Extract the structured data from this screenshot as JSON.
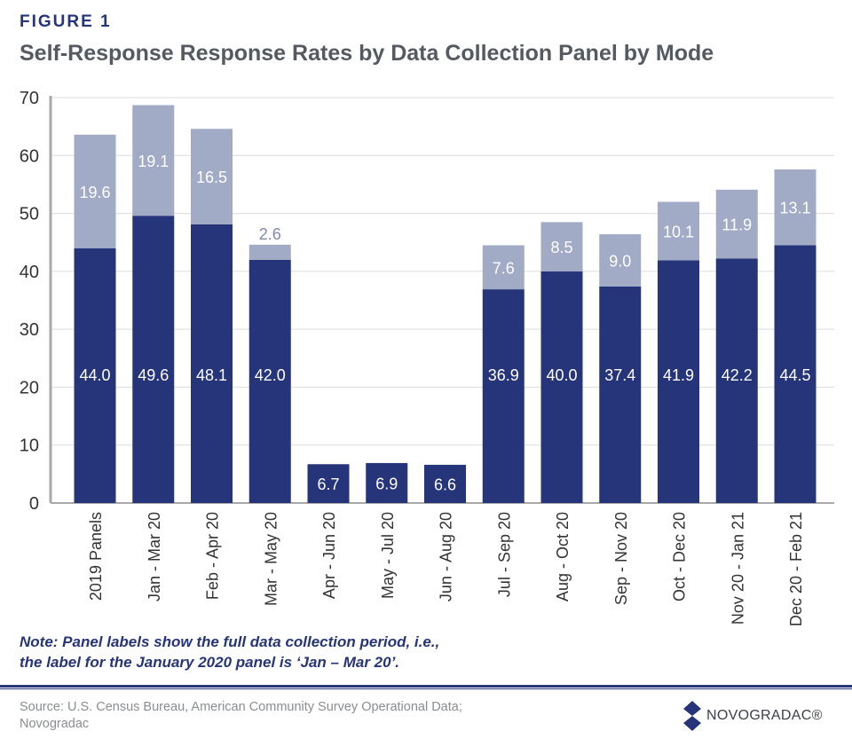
{
  "figure_label": "FIGURE 1",
  "note": [
    "Note: Panel labels show the full data collection period, i.e.,",
    "the label for the January 2020 panel is ‘Jan – Mar 20’."
  ],
  "source": "Source: U.S. Census Bureau, American Community Survey Operational Data; Novogradac",
  "logo_text": "NOVOGRADAC®",
  "colors": {
    "dark": "#26357a",
    "light": "#a2abc6",
    "grid": "#dcdcdc"
  },
  "chart_data": {
    "type": "bar",
    "stacked": true,
    "title": "Self-Response Response Rates by Data Collection Panel by Mode",
    "xlabel": "",
    "ylabel": "",
    "ylim": [
      0,
      70
    ],
    "yticks": [
      0,
      10,
      20,
      30,
      40,
      50,
      60,
      70
    ],
    "grid": true,
    "categories": [
      "2019 Panels",
      "Jan - Mar 20",
      "Feb - Apr 20",
      "Mar - May 20",
      "Apr - Jun 20",
      "May - Jul 20",
      "Jun - Aug 20",
      "Jul - Sep 20",
      "Aug - Oct 20",
      "Sep - Nov 20",
      "Oct - Dec 20",
      "Nov 20 - Jan 21",
      "Dec 20 - Feb 21"
    ],
    "series": [
      {
        "name": "Lower segment",
        "values": [
          44.0,
          49.6,
          48.1,
          42.0,
          6.7,
          6.9,
          6.6,
          36.9,
          40.0,
          37.4,
          41.9,
          42.2,
          44.5
        ],
        "labels": [
          "44.0",
          "49.6",
          "48.1",
          "42.0",
          "6.7",
          "6.9",
          "6.6",
          "36.9",
          "40.0",
          "37.4",
          "41.9",
          "42.2",
          "44.5"
        ]
      },
      {
        "name": "Upper segment",
        "values": [
          19.6,
          19.1,
          16.5,
          2.6,
          null,
          null,
          null,
          7.6,
          8.5,
          9.0,
          10.1,
          11.9,
          13.1
        ],
        "labels": [
          "19.6",
          "19.1",
          "16.5",
          "2.6",
          null,
          null,
          null,
          "7.6",
          "8.5",
          "9.0",
          "10.1",
          "11.9",
          "13.1"
        ]
      }
    ]
  }
}
